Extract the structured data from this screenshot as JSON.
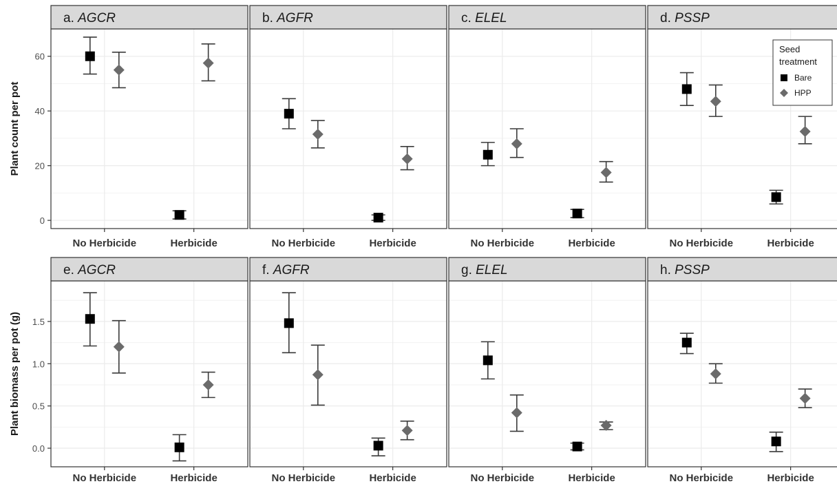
{
  "figure": {
    "rows": [
      {
        "ylabel": "Plant count per pot",
        "ylim": [
          -3,
          70
        ],
        "yticks": [
          0,
          20,
          40,
          60
        ],
        "minor_ticks": [
          10,
          30,
          50
        ]
      },
      {
        "ylabel": "Plant biomass per pot (g)",
        "ylim": [
          -0.22,
          1.98
        ],
        "yticks": [
          0.0,
          0.5,
          1.0,
          1.5
        ],
        "minor_ticks": [
          0.25,
          0.75,
          1.25,
          1.75
        ],
        "tick_labels": [
          "0.0",
          "0.5",
          "1.0",
          "1.5"
        ]
      }
    ],
    "categories": [
      "No Herbicide",
      "Herbicide"
    ],
    "legend": {
      "title_line1": "Seed",
      "title_line2": "treatment",
      "entries": [
        {
          "name": "Bare",
          "shape": "square",
          "color": "#000000"
        },
        {
          "name": "HPP",
          "shape": "diamond",
          "color": "#6b6b6b"
        }
      ],
      "placement": "top-right of panel d"
    },
    "colors": {
      "bare": "#000000",
      "hpp": "#6b6b6b",
      "strip": "#d9d9d9",
      "grid": "#ebebeb"
    }
  },
  "chart_data": [
    {
      "type": "scatter",
      "panel": "a.",
      "species": "AGCR",
      "row": 0,
      "categories": [
        "No Herbicide",
        "Herbicide"
      ],
      "series": [
        {
          "name": "Bare",
          "values": [
            60,
            2
          ],
          "lower": [
            53.5,
            0.5
          ],
          "upper": [
            67,
            3.5
          ]
        },
        {
          "name": "HPP",
          "values": [
            55,
            57.5
          ],
          "lower": [
            48.5,
            51
          ],
          "upper": [
            61.5,
            64.5
          ]
        }
      ]
    },
    {
      "type": "scatter",
      "panel": "b.",
      "species": "AGFR",
      "row": 0,
      "categories": [
        "No Herbicide",
        "Herbicide"
      ],
      "series": [
        {
          "name": "Bare",
          "values": [
            39,
            1
          ],
          "lower": [
            33.5,
            0
          ],
          "upper": [
            44.5,
            2
          ]
        },
        {
          "name": "HPP",
          "values": [
            31.5,
            22.5
          ],
          "lower": [
            26.5,
            18.5
          ],
          "upper": [
            36.5,
            27
          ]
        }
      ]
    },
    {
      "type": "scatter",
      "panel": "c.",
      "species": "ELEL",
      "row": 0,
      "categories": [
        "No Herbicide",
        "Herbicide"
      ],
      "series": [
        {
          "name": "Bare",
          "values": [
            24,
            2.5
          ],
          "lower": [
            20,
            1
          ],
          "upper": [
            28.5,
            4
          ]
        },
        {
          "name": "HPP",
          "values": [
            28,
            17.5
          ],
          "lower": [
            23,
            14
          ],
          "upper": [
            33.5,
            21.5
          ]
        }
      ]
    },
    {
      "type": "scatter",
      "panel": "d.",
      "species": "PSSP",
      "row": 0,
      "categories": [
        "No Herbicide",
        "Herbicide"
      ],
      "series": [
        {
          "name": "Bare",
          "values": [
            48,
            8.5
          ],
          "lower": [
            42,
            6
          ],
          "upper": [
            54,
            11
          ]
        },
        {
          "name": "HPP",
          "values": [
            43.5,
            32.5
          ],
          "lower": [
            38,
            28
          ],
          "upper": [
            49.5,
            38
          ]
        }
      ]
    },
    {
      "type": "scatter",
      "panel": "e.",
      "species": "AGCR",
      "row": 1,
      "categories": [
        "No Herbicide",
        "Herbicide"
      ],
      "series": [
        {
          "name": "Bare",
          "values": [
            1.53,
            0.01
          ],
          "lower": [
            1.21,
            -0.15
          ],
          "upper": [
            1.84,
            0.16
          ]
        },
        {
          "name": "HPP",
          "values": [
            1.2,
            0.75
          ],
          "lower": [
            0.89,
            0.6
          ],
          "upper": [
            1.51,
            0.9
          ]
        }
      ]
    },
    {
      "type": "scatter",
      "panel": "f.",
      "species": "AGFR",
      "row": 1,
      "categories": [
        "No Herbicide",
        "Herbicide"
      ],
      "series": [
        {
          "name": "Bare",
          "values": [
            1.48,
            0.03
          ],
          "lower": [
            1.13,
            -0.09
          ],
          "upper": [
            1.84,
            0.12
          ]
        },
        {
          "name": "HPP",
          "values": [
            0.87,
            0.21
          ],
          "lower": [
            0.51,
            0.1
          ],
          "upper": [
            1.22,
            0.32
          ]
        }
      ]
    },
    {
      "type": "scatter",
      "panel": "g.",
      "species": "ELEL",
      "row": 1,
      "categories": [
        "No Herbicide",
        "Herbicide"
      ],
      "series": [
        {
          "name": "Bare",
          "values": [
            1.04,
            0.02
          ],
          "lower": [
            0.82,
            -0.02
          ],
          "upper": [
            1.26,
            0.06
          ]
        },
        {
          "name": "HPP",
          "values": [
            0.42,
            0.27
          ],
          "lower": [
            0.2,
            0.22
          ],
          "upper": [
            0.63,
            0.31
          ]
        }
      ]
    },
    {
      "type": "scatter",
      "panel": "h.",
      "species": "PSSP",
      "row": 1,
      "categories": [
        "No Herbicide",
        "Herbicide"
      ],
      "series": [
        {
          "name": "Bare",
          "values": [
            1.25,
            0.08
          ],
          "lower": [
            1.12,
            -0.04
          ],
          "upper": [
            1.36,
            0.19
          ]
        },
        {
          "name": "HPP",
          "values": [
            0.88,
            0.59
          ],
          "lower": [
            0.77,
            0.48
          ],
          "upper": [
            1.0,
            0.7
          ]
        }
      ]
    }
  ]
}
